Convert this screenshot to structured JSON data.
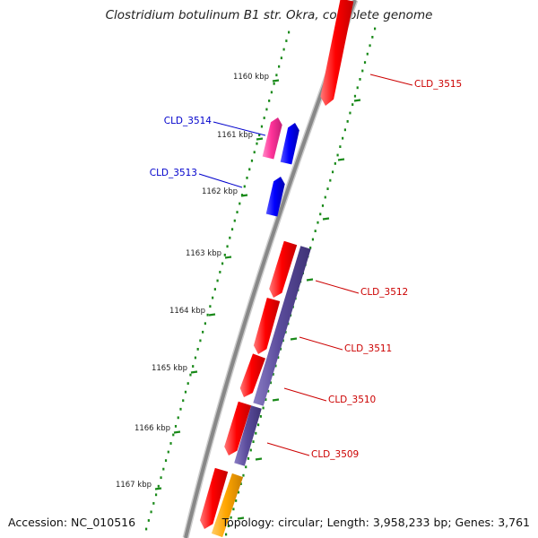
{
  "title": "Clostridium botulinum B1 str. Okra, complete genome",
  "footer": {
    "accession": "Accession: NC_010516",
    "summary": "Topology: circular; Length: 3,958,233 bp; Genes: 3,761"
  },
  "scale": {
    "ticks": [
      "1160 kbp",
      "1161 kbp",
      "1162 kbp",
      "1163 kbp",
      "1164 kbp",
      "1165 kbp",
      "1166 kbp",
      "1167 kbp"
    ]
  },
  "colors": {
    "backbone": "#888888",
    "forward_gene": "#ff0000",
    "reverse_gene": "#0000ff",
    "pink_gene": "#ff3399",
    "orange_gene": "#ffa500",
    "feature_track": "#5b4c9c",
    "tick_dots": "#1a8a1a",
    "label_forward": "#cc0000",
    "label_reverse": "#0000cc"
  },
  "genes": [
    {
      "name": "CLD_3515",
      "strand": "forward"
    },
    {
      "name": "CLD_3514",
      "strand": "reverse"
    },
    {
      "name": "CLD_3513",
      "strand": "reverse"
    },
    {
      "name": "CLD_3512",
      "strand": "forward"
    },
    {
      "name": "CLD_3511",
      "strand": "forward"
    },
    {
      "name": "CLD_3510",
      "strand": "forward"
    },
    {
      "name": "CLD_3509",
      "strand": "forward"
    }
  ]
}
